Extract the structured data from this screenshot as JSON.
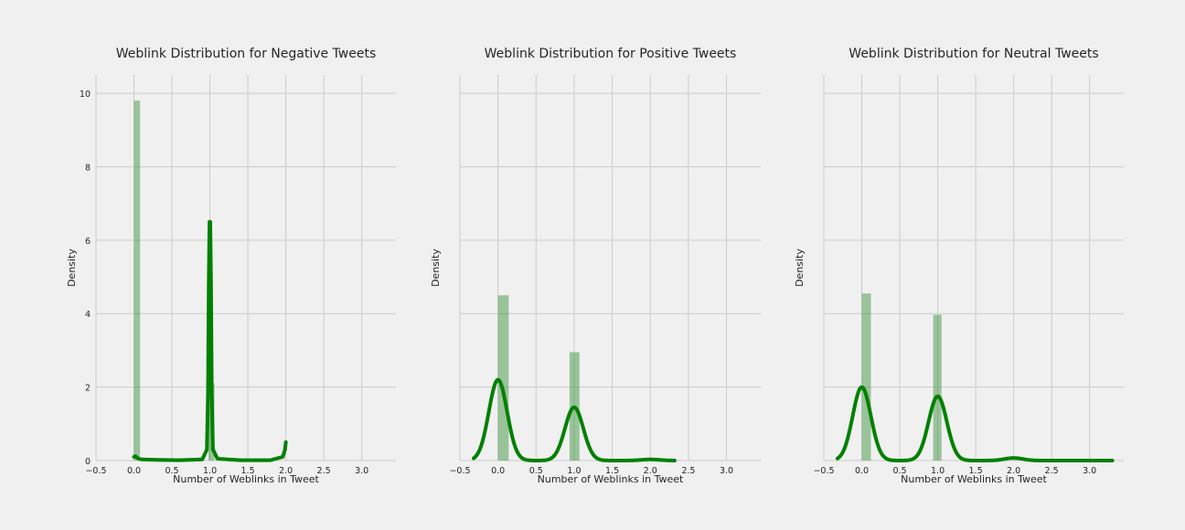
{
  "figure": {
    "background": "#f0f0f0",
    "bar_color": "#2e8b2e",
    "line_color": "#008000",
    "grid_color": "#cbcbcb"
  },
  "chart_data": [
    {
      "type": "bar",
      "title": "Weblink Distribution for Negative Tweets",
      "xlabel": "Number of Weblinks in Tweet",
      "ylabel": "Density",
      "xlim": [
        -0.5,
        3.45
      ],
      "ylim": [
        0,
        10.5
      ],
      "xticks": [
        "−0.5",
        "0.0",
        "0.5",
        "1.0",
        "1.5",
        "2.0",
        "2.5",
        "3.0"
      ],
      "xtick_values": [
        -0.5,
        0.0,
        0.5,
        1.0,
        1.5,
        2.0,
        2.5,
        3.0
      ],
      "yticks": [
        "0",
        "2",
        "4",
        "6",
        "8",
        "10"
      ],
      "ytick_values": [
        0,
        2,
        4,
        6,
        8,
        10
      ],
      "show_yticklabels": true,
      "grid": true,
      "bars": [
        {
          "x0": 0.0,
          "x1": 0.08,
          "height": 9.8
        },
        {
          "x0": 0.98,
          "x1": 1.06,
          "height": 2.1
        }
      ],
      "kde": {
        "x": [
          0.0,
          0.02,
          0.04,
          0.06,
          0.1,
          0.3,
          0.6,
          0.9,
          0.96,
          0.975,
          0.985,
          0.995,
          1.0,
          1.005,
          1.015,
          1.025,
          1.04,
          1.1,
          1.4,
          1.8,
          1.96,
          1.99,
          2.0
        ],
        "y": [
          0.1,
          0.12,
          0.08,
          0.05,
          0.03,
          0.02,
          0.01,
          0.03,
          0.3,
          1.8,
          4.8,
          6.5,
          6.5,
          6.5,
          4.8,
          1.8,
          0.3,
          0.05,
          0.01,
          0.01,
          0.1,
          0.3,
          0.5
        ]
      }
    },
    {
      "type": "bar",
      "title": "Weblink Distribution for Positive Tweets",
      "xlabel": "Number of Weblinks in Tweet",
      "ylabel": "Density",
      "xlim": [
        -0.5,
        3.45
      ],
      "ylim": [
        0,
        10.5
      ],
      "xticks": [
        "−0.5",
        "0.0",
        "0.5",
        "1.0",
        "1.5",
        "2.0",
        "2.5",
        "3.0"
      ],
      "xtick_values": [
        -0.5,
        0.0,
        0.5,
        1.0,
        1.5,
        2.0,
        2.5,
        3.0
      ],
      "yticks": [
        "0",
        "2",
        "4",
        "6",
        "8",
        "10"
      ],
      "ytick_values": [
        0,
        2,
        4,
        6,
        8,
        10
      ],
      "show_yticklabels": false,
      "grid": true,
      "bars": [
        {
          "x0": 0.0,
          "x1": 0.14,
          "height": 4.5
        },
        {
          "x0": 0.94,
          "x1": 1.07,
          "height": 2.95
        }
      ],
      "kde": {
        "mix": [
          {
            "mu": 0.0,
            "sigma": 0.12,
            "amp": 2.2
          },
          {
            "mu": 1.0,
            "sigma": 0.12,
            "amp": 1.45
          },
          {
            "mu": 2.0,
            "sigma": 0.12,
            "amp": 0.03
          }
        ],
        "range": [
          -0.32,
          2.32
        ]
      }
    },
    {
      "type": "bar",
      "title": "Weblink Distribution for Neutral Tweets",
      "xlabel": "Number of Weblinks in Tweet",
      "ylabel": "Density",
      "xlim": [
        -0.5,
        3.45
      ],
      "ylim": [
        0,
        10.5
      ],
      "xticks": [
        "−0.5",
        "0.0",
        "0.5",
        "1.0",
        "1.5",
        "2.0",
        "2.5",
        "3.0"
      ],
      "xtick_values": [
        -0.5,
        0.0,
        0.5,
        1.0,
        1.5,
        2.0,
        2.5,
        3.0
      ],
      "yticks": [
        "0",
        "2",
        "4",
        "6",
        "8",
        "10"
      ],
      "ytick_values": [
        0,
        2,
        4,
        6,
        8,
        10
      ],
      "show_yticklabels": false,
      "grid": true,
      "bars": [
        {
          "x0": 0.0,
          "x1": 0.12,
          "height": 4.55
        },
        {
          "x0": 0.94,
          "x1": 1.05,
          "height": 3.97
        }
      ],
      "kde": {
        "mix": [
          {
            "mu": 0.0,
            "sigma": 0.12,
            "amp": 2.0
          },
          {
            "mu": 1.0,
            "sigma": 0.12,
            "amp": 1.75
          },
          {
            "mu": 2.0,
            "sigma": 0.12,
            "amp": 0.07
          }
        ],
        "range": [
          -0.32,
          3.3
        ]
      }
    }
  ]
}
